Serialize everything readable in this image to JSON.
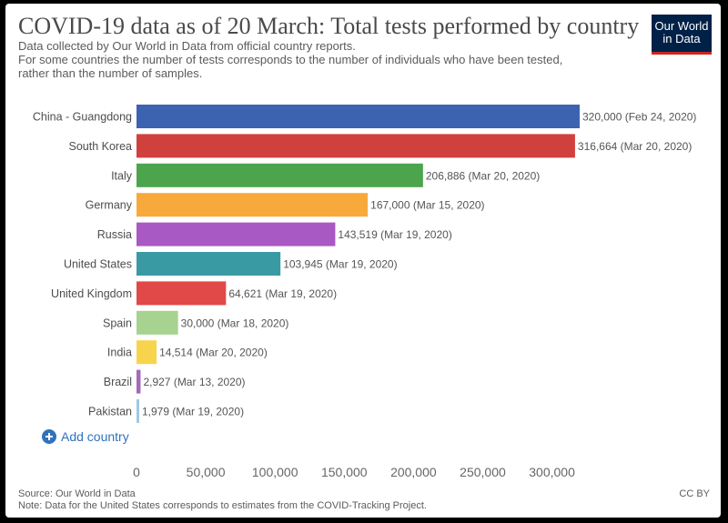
{
  "header": {
    "title": "COVID-19 data as of 20 March: Total tests performed by country",
    "subtitle_line1": "Data collected by Our World in Data from official country reports.",
    "subtitle_line2": "For some countries the number of tests corresponds to the number of individuals who have been tested,",
    "subtitle_line3": "rather than the number of samples.",
    "logo_line1": "Our World",
    "logo_line2": "in Data"
  },
  "controls": {
    "add_country_label": "Add country"
  },
  "footer": {
    "source": "Source: Our World in Data",
    "note": "Note: Data for the United States corresponds to estimates from the COVID-Tracking Project.",
    "license": "CC BY"
  },
  "chart_data": {
    "type": "bar",
    "orientation": "horizontal",
    "title": "COVID-19 data as of 20 March: Total tests performed by country",
    "xlim": [
      0,
      320000
    ],
    "x_ticks": [
      0,
      50000,
      100000,
      150000,
      200000,
      250000,
      300000
    ],
    "x_tick_labels": [
      "0",
      "50,000",
      "100,000",
      "150,000",
      "200,000",
      "250,000",
      "300,000"
    ],
    "categories": [
      "China - Guangdong",
      "South Korea",
      "Italy",
      "Germany",
      "Russia",
      "United States",
      "United Kingdom",
      "Spain",
      "India",
      "Brazil",
      "Pakistan"
    ],
    "values": [
      320000,
      316664,
      206886,
      167000,
      143519,
      103945,
      64621,
      30000,
      14514,
      2927,
      1979
    ],
    "data_labels": [
      "320,000 (Feb 24, 2020)",
      "316,664 (Mar 20, 2020)",
      "206,886 (Mar 20, 2020)",
      "167,000 (Mar 15, 2020)",
      "143,519 (Mar 19, 2020)",
      "103,945 (Mar 19, 2020)",
      "64,621 (Mar 19, 2020)",
      "30,000 (Mar 18, 2020)",
      "14,514 (Mar 20, 2020)",
      "2,927 (Mar 13, 2020)",
      "1,979 (Mar 19, 2020)"
    ],
    "colors": [
      "#3c63b0",
      "#d0413e",
      "#4ca44c",
      "#f8a93b",
      "#a959c4",
      "#3a9aa4",
      "#e14848",
      "#a6d38f",
      "#f8d44c",
      "#a26ab8",
      "#9cc9e6"
    ],
    "legend": "none",
    "grid": false
  }
}
